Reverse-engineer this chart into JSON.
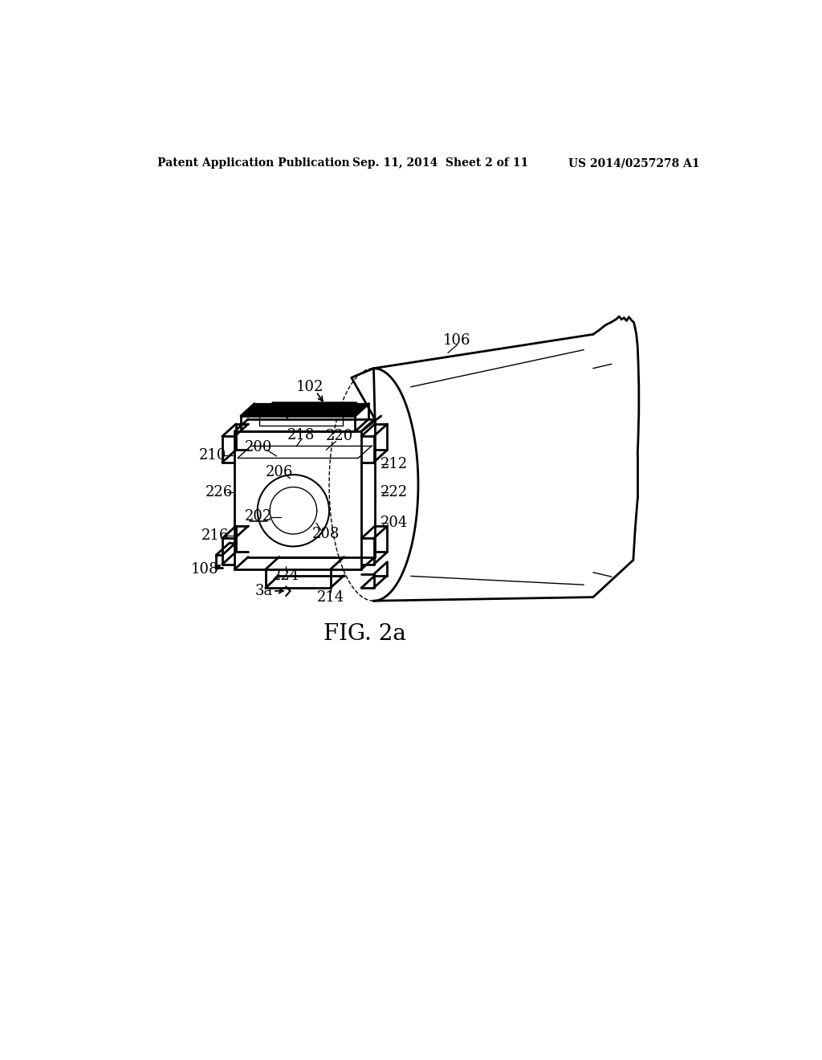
{
  "header_left": "Patent Application Publication",
  "header_middle": "Sep. 11, 2014  Sheet 2 of 11",
  "header_right": "US 2014/0257278 A1",
  "bg_color": "#ffffff",
  "line_color": "#000000",
  "fig_caption": "FIG. 2a"
}
